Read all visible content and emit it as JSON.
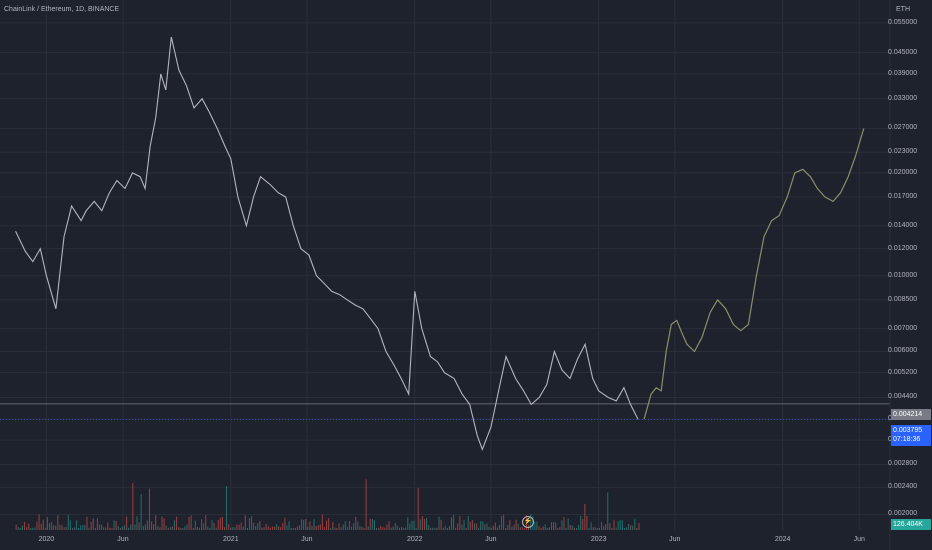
{
  "header": {
    "title": "ChainLink / Ethereum, 1D, BINANCE",
    "unit": "ETH"
  },
  "y_axis": {
    "ticks": [
      "0.055000",
      "0.045000",
      "0.039000",
      "0.033000",
      "0.027000",
      "0.023000",
      "0.020000",
      "0.017000",
      "0.014000",
      "0.012000",
      "0.010000",
      "0.008500",
      "0.007000",
      "0.006000",
      "0.005200",
      "0.004400",
      "0.003800",
      "0.003300",
      "0.002800",
      "0.002400",
      "0.002000"
    ]
  },
  "x_axis": {
    "ticks": [
      "2020",
      "Jun",
      "2021",
      "Jun",
      "2022",
      "Jun",
      "2023",
      "Jun",
      "2024",
      "Jun"
    ]
  },
  "badges": {
    "last_price": "0.004214",
    "current_price": "0.003795",
    "countdown": "07:18:36",
    "volume": "126.404K"
  },
  "colors": {
    "background": "#1e222d",
    "price_line": "#b2b5be",
    "projection": "#8a8f6a",
    "vol_up": "#26a69a",
    "vol_down": "#ef5350",
    "current_line": "#2962ff",
    "grid": "#2a2e39"
  },
  "chart_data": {
    "type": "line",
    "title": "ChainLink / Ethereum, 1D, BINANCE",
    "scale": "log",
    "ylim": [
      0.0018,
      0.06
    ],
    "series": [
      {
        "x": [
          "2019-11-01",
          "2019-11-20",
          "2019-12-05",
          "2019-12-20",
          "2020-01-01",
          "2020-01-20",
          "2020-02-05",
          "2020-02-20",
          "2020-03-10",
          "2020-03-20",
          "2020-04-05",
          "2020-04-20",
          "2020-05-05",
          "2020-05-20",
          "2020-06-05",
          "2020-06-20",
          "2020-07-05",
          "2020-07-15",
          "2020-07-25",
          "2020-08-05",
          "2020-08-15",
          "2020-08-25",
          "2020-09-05",
          "2020-09-20",
          "2020-10-05",
          "2020-10-20",
          "2020-11-05",
          "2020-11-20",
          "2020-12-05",
          "2020-12-20",
          "2021-01-01",
          "2021-01-15",
          "2021-02-01",
          "2021-02-15",
          "2021-03-01",
          "2021-03-20",
          "2021-04-05",
          "2021-04-20",
          "2021-05-05",
          "2021-05-20",
          "2021-06-05",
          "2021-06-20",
          "2021-07-05",
          "2021-07-20",
          "2021-08-05",
          "2021-08-20",
          "2021-09-05",
          "2021-09-20",
          "2021-10-05",
          "2021-10-20",
          "2021-11-05",
          "2021-11-20",
          "2021-12-05",
          "2021-12-20",
          "2022-01-01",
          "2022-01-15",
          "2022-02-01",
          "2022-02-15",
          "2022-03-01",
          "2022-03-20",
          "2022-04-05",
          "2022-04-20",
          "2022-05-05",
          "2022-05-15",
          "2022-06-01",
          "2022-06-15",
          "2022-07-01",
          "2022-07-20",
          "2022-08-05",
          "2022-08-20",
          "2022-09-05",
          "2022-09-20",
          "2022-10-05",
          "2022-10-20",
          "2022-11-05",
          "2022-11-20",
          "2022-12-05",
          "2022-12-20",
          "2023-01-01",
          "2023-01-20",
          "2023-02-05",
          "2023-02-20",
          "2023-03-05",
          "2023-03-20"
        ],
        "y": [
          0.0135,
          0.0118,
          0.011,
          0.012,
          0.01,
          0.008,
          0.013,
          0.016,
          0.0145,
          0.0155,
          0.0165,
          0.0155,
          0.0175,
          0.019,
          0.018,
          0.02,
          0.0195,
          0.018,
          0.024,
          0.029,
          0.039,
          0.035,
          0.05,
          0.04,
          0.036,
          0.031,
          0.033,
          0.03,
          0.027,
          0.024,
          0.022,
          0.017,
          0.014,
          0.017,
          0.0195,
          0.0185,
          0.0175,
          0.017,
          0.014,
          0.012,
          0.0115,
          0.01,
          0.0095,
          0.009,
          0.0088,
          0.0085,
          0.0082,
          0.008,
          0.0075,
          0.007,
          0.006,
          0.0055,
          0.005,
          0.0045,
          0.009,
          0.007,
          0.0058,
          0.0056,
          0.0052,
          0.005,
          0.0045,
          0.0042,
          0.0034,
          0.0031,
          0.0036,
          0.0045,
          0.0058,
          0.005,
          0.0046,
          0.0042,
          0.0044,
          0.0048,
          0.006,
          0.0053,
          0.005,
          0.0057,
          0.0063,
          0.005,
          0.0046,
          0.0044,
          0.0043,
          0.0047,
          0.0042,
          0.0038
        ]
      },
      {
        "x": [
          "2023-04-01",
          "2023-04-15",
          "2023-04-25",
          "2023-05-05",
          "2023-05-15",
          "2023-05-25",
          "2023-06-05",
          "2023-06-15",
          "2023-06-25",
          "2023-07-10",
          "2023-07-25",
          "2023-08-10",
          "2023-08-25",
          "2023-09-10",
          "2023-09-25",
          "2023-10-10",
          "2023-10-25",
          "2023-11-10",
          "2023-11-25",
          "2023-12-10",
          "2023-12-25",
          "2024-01-10",
          "2024-01-25",
          "2024-02-10",
          "2024-02-25",
          "2024-03-10",
          "2024-03-25",
          "2024-04-10",
          "2024-04-25",
          "2024-05-10",
          "2024-05-25",
          "2024-06-10"
        ],
        "y": [
          0.0038,
          0.0045,
          0.0047,
          0.0046,
          0.006,
          0.0072,
          0.0074,
          0.0068,
          0.0063,
          0.006,
          0.0066,
          0.0078,
          0.0085,
          0.008,
          0.0072,
          0.0069,
          0.0072,
          0.01,
          0.013,
          0.0145,
          0.015,
          0.017,
          0.02,
          0.0205,
          0.0195,
          0.018,
          0.017,
          0.0165,
          0.0175,
          0.0195,
          0.0225,
          0.027
        ]
      }
    ],
    "last_price": 0.004214,
    "current_price": 0.003795,
    "volume_last": "126.404K"
  }
}
